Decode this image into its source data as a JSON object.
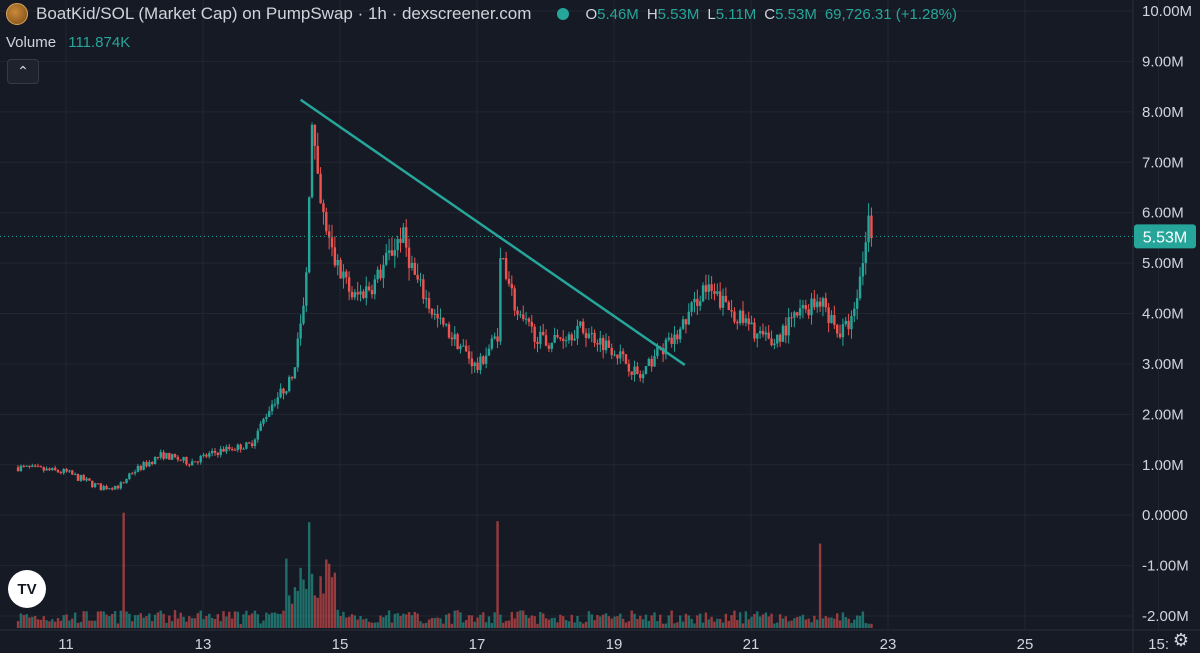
{
  "header": {
    "title": "BoatKid/SOL (Market Cap) on PumpSwap · 1h · dexscreener.com",
    "ohlc": [
      {
        "label": "O",
        "value": "5.46M"
      },
      {
        "label": "H",
        "value": "5.53M"
      },
      {
        "label": "L",
        "value": "5.11M"
      },
      {
        "label": "C",
        "value": "5.53M"
      }
    ],
    "change": "69,726.31 (+1.28%)"
  },
  "volume": {
    "label": "Volume",
    "value": "111.874K"
  },
  "tv_logo_text": "TV",
  "icons": {
    "collapse": "chevron-up-icon",
    "settings": "gear-icon",
    "logo": "token-logo-icon",
    "status": "status-dot-icon"
  },
  "colors": {
    "background": "#161a25",
    "up": "#26a69a",
    "down": "#ef5350",
    "trendline": "#26a69a",
    "grid": "#22262f",
    "text": "#d1d4dc"
  },
  "chart_data": {
    "type": "candlestick",
    "interval": "1h",
    "grid": true,
    "price_axis": {
      "position": "right",
      "ticks": [
        "10.00M",
        "9.00M",
        "8.00M",
        "7.00M",
        "6.00M",
        "5.00M",
        "4.00M",
        "3.00M",
        "2.00M",
        "1.00M",
        "0.0000",
        "-1.00M",
        "-2.00M"
      ],
      "tick_values": [
        10,
        9,
        8,
        7,
        6,
        5,
        4,
        3,
        2,
        1,
        0,
        -1,
        -2
      ],
      "range": [
        -2.1,
        10.1
      ],
      "unit": "M"
    },
    "time_axis": {
      "ticks": [
        "11",
        "13",
        "15",
        "17",
        "19",
        "21",
        "23",
        "25",
        "15:"
      ],
      "tick_days": [
        11,
        13,
        15,
        17,
        19,
        21,
        23,
        25,
        26.95
      ],
      "range_days": [
        10.3,
        27.0
      ]
    },
    "last_price": {
      "label": "5.53M",
      "value": 5.53
    },
    "price_path_days": [
      10.3,
      11.0,
      11.5,
      11.85,
      11.9,
      12.4,
      12.8,
      13.3,
      13.7,
      14.0,
      14.3,
      14.5,
      14.58,
      14.7,
      14.9,
      15.2,
      15.5,
      15.9,
      16.1,
      16.4,
      16.8,
      17.0,
      17.3,
      17.35,
      17.6,
      18.0,
      18.5,
      19.0,
      19.4,
      19.6,
      19.9,
      20.3,
      20.6,
      21.0,
      21.3,
      21.7,
      22.0,
      22.3,
      22.5,
      22.65,
      22.7,
      22.8
    ],
    "price_path_values": [
      0.95,
      0.85,
      0.55,
      0.6,
      0.8,
      1.2,
      1.05,
      1.3,
      1.4,
      2.2,
      2.7,
      4.4,
      7.8,
      6.2,
      5.1,
      4.3,
      4.6,
      5.6,
      4.7,
      3.9,
      3.3,
      2.9,
      3.6,
      5.3,
      3.9,
      3.4,
      3.7,
      3.3,
      2.7,
      3.2,
      3.5,
      4.5,
      4.2,
      3.7,
      3.4,
      4.0,
      4.3,
      3.6,
      3.9,
      5.2,
      5.9,
      5.53
    ],
    "volume_spikes_days": [
      11.85,
      14.55,
      17.3,
      22.0
    ],
    "trendline": {
      "from": {
        "day": 14.6,
        "value": 8.2
      },
      "to": {
        "day": 19.8,
        "value": 2.9
      }
    }
  }
}
